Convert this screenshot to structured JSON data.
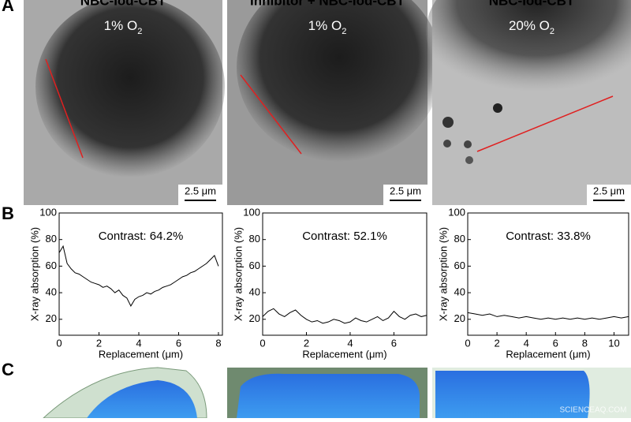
{
  "panel_labels": [
    "A",
    "B",
    "C"
  ],
  "images": [
    {
      "title": "NBC-Iod-CBT",
      "condition": "1% O",
      "condition_sub": "2",
      "scale_bar": "2.5 μm"
    },
    {
      "title": "Inhibitor + NBC-Iod-CBT",
      "condition": "1% O",
      "condition_sub": "2",
      "scale_bar": "2.5 μm"
    },
    {
      "title": "NBC-Iod-CBT",
      "condition": "20% O",
      "condition_sub": "2",
      "scale_bar": "2.5 μm"
    }
  ],
  "chart_data": [
    {
      "type": "line",
      "annotation": "Contrast: 64.2%",
      "x_label": "Replacement (μm)",
      "y_label": "X-ray absorption (%)",
      "color": "#000000",
      "x": [
        0,
        0.2,
        0.4,
        0.6,
        0.8,
        1.0,
        1.2,
        1.4,
        1.6,
        1.8,
        2.0,
        2.2,
        2.4,
        2.6,
        2.8,
        3.0,
        3.2,
        3.4,
        3.6,
        3.8,
        4.0,
        4.2,
        4.4,
        4.6,
        4.8,
        5.0,
        5.2,
        5.4,
        5.6,
        5.8,
        6.0,
        6.2,
        6.4,
        6.6,
        6.8,
        7.0,
        7.2,
        7.4,
        7.6,
        7.8,
        8.0
      ],
      "values": [
        70,
        75,
        62,
        58,
        55,
        54,
        52,
        50,
        48,
        47,
        46,
        44,
        45,
        43,
        40,
        42,
        38,
        36,
        30,
        35,
        37,
        38,
        40,
        39,
        41,
        42,
        44,
        45,
        46,
        48,
        50,
        52,
        53,
        55,
        56,
        58,
        60,
        62,
        65,
        68,
        60
      ],
      "xlim": [
        0,
        8.2
      ],
      "xticks": [
        0,
        2,
        4,
        6,
        8
      ],
      "ylim": [
        8,
        100
      ],
      "yticks": [
        20,
        40,
        60,
        80,
        100
      ]
    },
    {
      "type": "line",
      "annotation": "Contrast: 52.1%",
      "x_label": "Replacement (μm)",
      "y_label": "X-ray absorption (%)",
      "color": "#000000",
      "x": [
        0,
        0.25,
        0.5,
        0.75,
        1.0,
        1.25,
        1.5,
        1.75,
        2.0,
        2.25,
        2.5,
        2.75,
        3.0,
        3.25,
        3.5,
        3.75,
        4.0,
        4.25,
        4.5,
        4.75,
        5.0,
        5.25,
        5.5,
        5.75,
        6.0,
        6.25,
        6.5,
        6.75,
        7.0,
        7.25,
        7.5
      ],
      "values": [
        22,
        26,
        28,
        24,
        22,
        25,
        27,
        23,
        20,
        18,
        19,
        17,
        18,
        20,
        19,
        17,
        18,
        21,
        19,
        18,
        20,
        22,
        19,
        21,
        26,
        22,
        20,
        23,
        24,
        22,
        23
      ],
      "xlim": [
        0,
        7.5
      ],
      "xticks": [
        0,
        2,
        4,
        6
      ],
      "ylim": [
        8,
        100
      ],
      "yticks": [
        20,
        40,
        60,
        80,
        100
      ]
    },
    {
      "type": "line",
      "annotation": "Contrast: 33.8%",
      "x_label": "Replacement (μm)",
      "y_label": "X-ray absorption (%)",
      "color": "#000000",
      "x": [
        0,
        0.5,
        1.0,
        1.5,
        2.0,
        2.5,
        3.0,
        3.5,
        4.0,
        4.5,
        5.0,
        5.5,
        6.0,
        6.5,
        7.0,
        7.5,
        8.0,
        8.5,
        9.0,
        9.5,
        10.0,
        10.5,
        11.0
      ],
      "values": [
        25,
        24,
        23,
        24,
        22,
        23,
        22,
        21,
        22,
        21,
        20,
        21,
        20,
        21,
        20,
        21,
        20,
        21,
        20,
        21,
        22,
        21,
        22
      ],
      "xlim": [
        0,
        11
      ],
      "xticks": [
        0,
        2,
        4,
        6,
        8,
        10
      ],
      "ylim": [
        8,
        100
      ],
      "yticks": [
        20,
        40,
        60,
        80,
        100
      ]
    }
  ],
  "watermark": "SCIENCEAQ.COM"
}
